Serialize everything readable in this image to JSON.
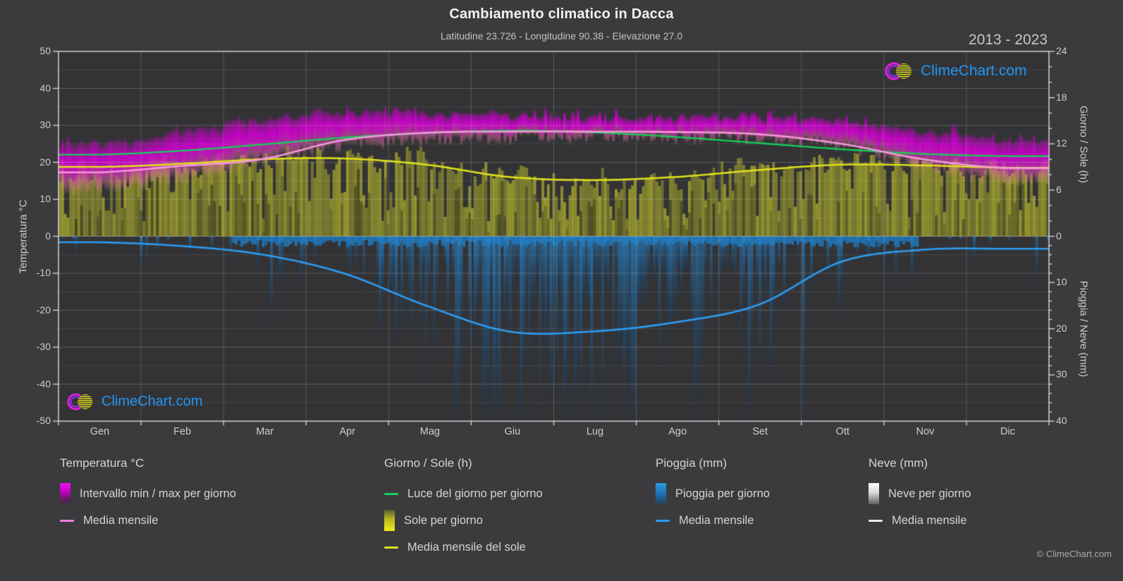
{
  "header": {
    "title": "Cambiamento climatico in Dacca",
    "subtitle": "Latitudine 23.726 - Longitudine 90.38 - Elevazione 27.0",
    "year_range": "2013 - 2023"
  },
  "branding": {
    "logo_text": "ClimeChart.com",
    "logo_color": "#2196f3"
  },
  "footer": {
    "copyright": "© ClimeChart.com"
  },
  "months": [
    "Gen",
    "Feb",
    "Mar",
    "Apr",
    "Mag",
    "Giu",
    "Lug",
    "Ago",
    "Set",
    "Ott",
    "Nov",
    "Dic"
  ],
  "axes": {
    "temp": {
      "label": "Temperatura °C",
      "ticks": [
        50,
        40,
        30,
        20,
        10,
        0,
        -10,
        -20,
        -30,
        -40,
        -50
      ]
    },
    "sun": {
      "label": "Giorno / Sole (h)",
      "ticks": [
        24,
        18,
        12,
        6,
        0
      ]
    },
    "rain": {
      "label": "Pioggia / Neve (mm)",
      "ticks": [
        10,
        20,
        30,
        40
      ]
    }
  },
  "legend": {
    "groups": [
      {
        "title": "Temperatura °C",
        "items": [
          {
            "swatch": "gradient-magenta",
            "label": "Intervallo min / max per giorno"
          },
          {
            "swatch": "line-pink",
            "label": "Media mensile"
          }
        ]
      },
      {
        "title": "Giorno / Sole (h)",
        "items": [
          {
            "swatch": "line-green",
            "label": "Luce del giorno per giorno"
          },
          {
            "swatch": "gradient-yellow",
            "label": "Sole per giorno"
          },
          {
            "swatch": "line-yellow",
            "label": "Media mensile del sole"
          }
        ]
      },
      {
        "title": "Pioggia (mm)",
        "items": [
          {
            "swatch": "gradient-blue",
            "label": "Pioggia per giorno"
          },
          {
            "swatch": "line-blue",
            "label": "Media mensile"
          }
        ]
      },
      {
        "title": "Neve (mm)",
        "items": [
          {
            "swatch": "gradient-white",
            "label": "Neve per giorno"
          },
          {
            "swatch": "line-white",
            "label": "Media mensile"
          }
        ]
      }
    ]
  },
  "chart_data": {
    "type": "area",
    "title": "Cambiamento climatico in Dacca",
    "subtitle": "Latitudine 23.726 - Longitudine 90.38 - Elevazione 27.0",
    "period": "2013 - 2023",
    "x_categories": [
      "Gen",
      "Feb",
      "Mar",
      "Apr",
      "Mag",
      "Giu",
      "Lug",
      "Ago",
      "Set",
      "Ott",
      "Nov",
      "Dic"
    ],
    "axes": {
      "left": {
        "label": "Temperatura °C",
        "range": [
          -50,
          50
        ],
        "tick_step": 10
      },
      "right_top": {
        "label": "Giorno / Sole (h)",
        "range": [
          0,
          24
        ],
        "ticks": [
          0,
          6,
          12,
          18,
          24
        ]
      },
      "right_bottom": {
        "label": "Pioggia / Neve (mm)",
        "range": [
          0,
          40
        ],
        "ticks": [
          10,
          20,
          30,
          40
        ],
        "direction": "down"
      }
    },
    "grid": {
      "h_major_every_c": 10,
      "h_minor_every_c": 5,
      "v_at_month_bounds": true
    },
    "legend_position": "bottom",
    "series": [
      {
        "key": "daylight",
        "name": "Luce del giorno per giorno",
        "unit": "h",
        "type": "line",
        "color": "#17cf58",
        "monthly": [
          10.6,
          11.1,
          11.9,
          12.8,
          13.4,
          13.7,
          13.5,
          12.9,
          12.1,
          11.3,
          10.7,
          10.4
        ]
      },
      {
        "key": "sun_bars",
        "name": "Sole per giorno",
        "unit": "h",
        "type": "daily-bars-up",
        "color": "#a3a32d",
        "monthly": [
          9.0,
          9.4,
          10.0,
          10.1,
          9.3,
          7.7,
          7.3,
          7.7,
          8.6,
          9.3,
          9.2,
          8.9
        ]
      },
      {
        "key": "sun_mean",
        "name": "Media mensile del sole",
        "unit": "h",
        "type": "line",
        "color": "#e2e21c",
        "monthly": [
          9.0,
          9.4,
          10.0,
          10.1,
          9.3,
          7.7,
          7.3,
          7.7,
          8.6,
          9.3,
          9.2,
          8.9
        ]
      },
      {
        "key": "temp_band",
        "name": "Intervallo min / max per giorno",
        "unit": "°C",
        "type": "daily-band",
        "color": "#cc00cc",
        "monthly_max": [
          25.5,
          28.5,
          32.0,
          34.0,
          34.0,
          33.0,
          32.3,
          32.5,
          32.3,
          31.5,
          29.0,
          26.5
        ],
        "monthly_min": [
          12.5,
          15.0,
          20.0,
          24.0,
          25.5,
          26.2,
          26.3,
          26.2,
          25.8,
          24.0,
          18.5,
          14.0
        ]
      },
      {
        "key": "temp_mean",
        "name": "Media mensile",
        "unit": "°C",
        "type": "line",
        "color": "#f597dc",
        "monthly": [
          17.3,
          19.0,
          20.8,
          26.0,
          28.0,
          28.3,
          28.3,
          28.2,
          27.6,
          25.0,
          20.8,
          18.4
        ]
      },
      {
        "key": "rain_bars",
        "name": "Pioggia per giorno",
        "unit": "mm",
        "type": "daily-bars-down",
        "color": "#1f7ab8",
        "monthly": [
          1.3,
          2.1,
          3.9,
          8.0,
          15.0,
          20.6,
          20.6,
          18.6,
          14.8,
          5.5,
          2.9,
          2.7
        ]
      },
      {
        "key": "rain_mean",
        "name": "Media mensile",
        "unit": "mm",
        "type": "line",
        "color": "#2d9cf0",
        "monthly": [
          1.3,
          2.1,
          3.9,
          8.0,
          15.0,
          20.6,
          20.6,
          18.6,
          14.8,
          5.5,
          2.9,
          2.7
        ]
      },
      {
        "key": "snow_bars",
        "name": "Neve per giorno",
        "unit": "mm",
        "type": "daily-bars-down",
        "color": "#dddddd",
        "monthly": [
          0,
          0,
          0,
          0,
          0,
          0,
          0,
          0,
          0,
          0,
          0,
          0
        ]
      },
      {
        "key": "snow_mean",
        "name": "Media mensile",
        "unit": "mm",
        "type": "line",
        "color": "#ececec",
        "monthly": [
          0,
          0,
          0,
          0,
          0,
          0,
          0,
          0,
          0,
          0,
          0,
          0
        ]
      }
    ]
  },
  "colors": {
    "page_bg": "#3b3b3d",
    "plot_bg": "#333336",
    "axis": "#dcdcdc",
    "grid": "#ffffff",
    "text": "#d6d6d6",
    "logo_blue": "#2196f3",
    "magenta": "#cc00cc",
    "olive": "#a3a32d",
    "rain_blue": "#1f7ab8",
    "mean_blue": "#2d9cf0",
    "mean_pink": "#f597dc",
    "daylight_green": "#17cf58",
    "sun_yellow": "#e2e21c"
  }
}
